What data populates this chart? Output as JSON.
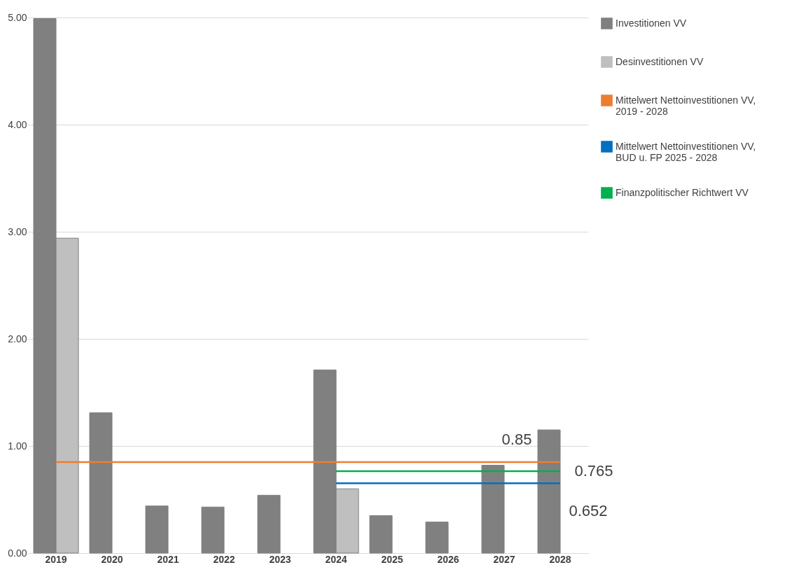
{
  "chart_data": {
    "type": "bar",
    "categories": [
      "2019",
      "2020",
      "2021",
      "2022",
      "2023",
      "2024",
      "2025",
      "2026",
      "2027",
      "2028"
    ],
    "series": [
      {
        "name": "Investitionen VV",
        "color": "#808080",
        "values": [
          4.99,
          1.31,
          0.44,
          0.43,
          0.54,
          1.71,
          0.35,
          0.29,
          0.82,
          1.15
        ]
      },
      {
        "name": "Desinvestitionen VV",
        "color": "#bfbfbf",
        "values": [
          2.94,
          null,
          null,
          null,
          null,
          0.6,
          null,
          null,
          null,
          null
        ]
      },
      {
        "name": "Mittelwert Nettoinvestitionen VV, 2019 - 2028",
        "type": "line",
        "color": "#ed7d31",
        "values": [
          0.85,
          0.85,
          0.85,
          0.85,
          0.85,
          0.85,
          0.85,
          0.85,
          0.85,
          0.85
        ]
      },
      {
        "name": "Mittelwert Nettoinvestitionen VV, BUD u. FP 2025 - 2028",
        "type": "line",
        "color": "#0070c0",
        "values": [
          null,
          null,
          null,
          null,
          null,
          0.652,
          0.652,
          0.652,
          0.652,
          0.652
        ]
      },
      {
        "name": "Finanzpolitischer Richtwert VV",
        "type": "line",
        "color": "#00b050",
        "values": [
          null,
          null,
          null,
          null,
          null,
          0.765,
          0.765,
          0.765,
          0.765,
          0.765
        ]
      }
    ],
    "ylim": [
      0,
      5
    ],
    "yticks": [
      {
        "value": 0,
        "label": "0.00"
      },
      {
        "value": 1,
        "label": "1.00"
      },
      {
        "value": 2,
        "label": "2.00"
      },
      {
        "value": 3,
        "label": "3.00"
      },
      {
        "value": 4,
        "label": "4.00"
      },
      {
        "value": 5,
        "label": "5.00"
      }
    ],
    "grid": "y",
    "legend": "right",
    "annotations": [
      {
        "text": "0.85",
        "x": "2028",
        "y": 0.85
      },
      {
        "text": "0.765",
        "x": "2028",
        "y": 0.765
      },
      {
        "text": "0.652",
        "x": "2028",
        "y": 0.652
      }
    ]
  }
}
